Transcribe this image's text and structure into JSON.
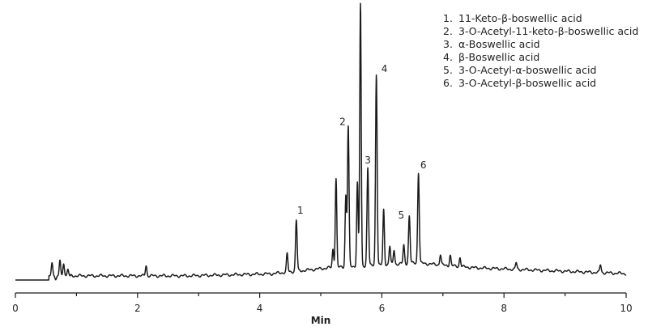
{
  "chart_data": {
    "type": "line",
    "title": "",
    "xlabel": "Min",
    "ylabel": "",
    "xlim": [
      0,
      10
    ],
    "ylim": [
      0,
      100
    ],
    "x_ticks": [
      0,
      2,
      4,
      6,
      8,
      10
    ],
    "grid": false,
    "legend_position": "top-right",
    "legend": [
      {
        "number": "1.",
        "name": "11-Keto-β-boswellic acid"
      },
      {
        "number": "2.",
        "name": "3-O-Acetyl-11-keto-β-boswellic acid"
      },
      {
        "number": "3.",
        "name": "α-Boswellic acid"
      },
      {
        "number": "4.",
        "name": "β-Boswellic acid"
      },
      {
        "number": "5.",
        "name": "3-O-Acetyl-α-boswellic acid"
      },
      {
        "number": "6.",
        "name": "3-O-Acetyl-β-boswellic acid"
      }
    ],
    "peaks": [
      {
        "label": "1",
        "x": 4.6,
        "height": 19.5
      },
      {
        "label": "2",
        "x": 5.45,
        "height": 53.5
      },
      {
        "label": "3",
        "x": 5.77,
        "height": 37.5
      },
      {
        "label": "4",
        "x": 5.91,
        "height": 73
      },
      {
        "label": "5",
        "x": 6.45,
        "height": 18
      },
      {
        "label": "6",
        "x": 6.6,
        "height": 34.5
      }
    ],
    "other_peaks": [
      {
        "x": 0.6,
        "height": 5,
        "neg": false
      },
      {
        "x": 0.66,
        "height": 1.5,
        "neg": true
      },
      {
        "x": 0.73,
        "height": 6,
        "neg": false
      },
      {
        "x": 0.79,
        "height": 4.5,
        "neg": false
      },
      {
        "x": 0.86,
        "height": 2.5,
        "neg": false
      },
      {
        "x": 2.14,
        "height": 4,
        "neg": false
      },
      {
        "x": 4.45,
        "height": 7,
        "neg": false
      },
      {
        "x": 5.2,
        "height": 7,
        "neg": false
      },
      {
        "x": 5.25,
        "height": 34,
        "neg": false
      },
      {
        "x": 5.41,
        "height": 27,
        "neg": false
      },
      {
        "x": 5.6,
        "height": 32,
        "neg": false
      },
      {
        "x": 5.65,
        "height": 100,
        "neg": false
      },
      {
        "x": 6.03,
        "height": 21,
        "neg": false
      },
      {
        "x": 6.13,
        "height": 7,
        "neg": false
      },
      {
        "x": 6.2,
        "height": 5.5,
        "neg": false
      },
      {
        "x": 6.36,
        "height": 7,
        "neg": false
      },
      {
        "x": 6.96,
        "height": 4,
        "neg": false
      },
      {
        "x": 7.12,
        "height": 4,
        "neg": false
      },
      {
        "x": 7.28,
        "height": 3.5,
        "neg": false
      },
      {
        "x": 8.2,
        "height": 2.5,
        "neg": false
      },
      {
        "x": 9.58,
        "height": 3,
        "neg": false
      }
    ]
  }
}
